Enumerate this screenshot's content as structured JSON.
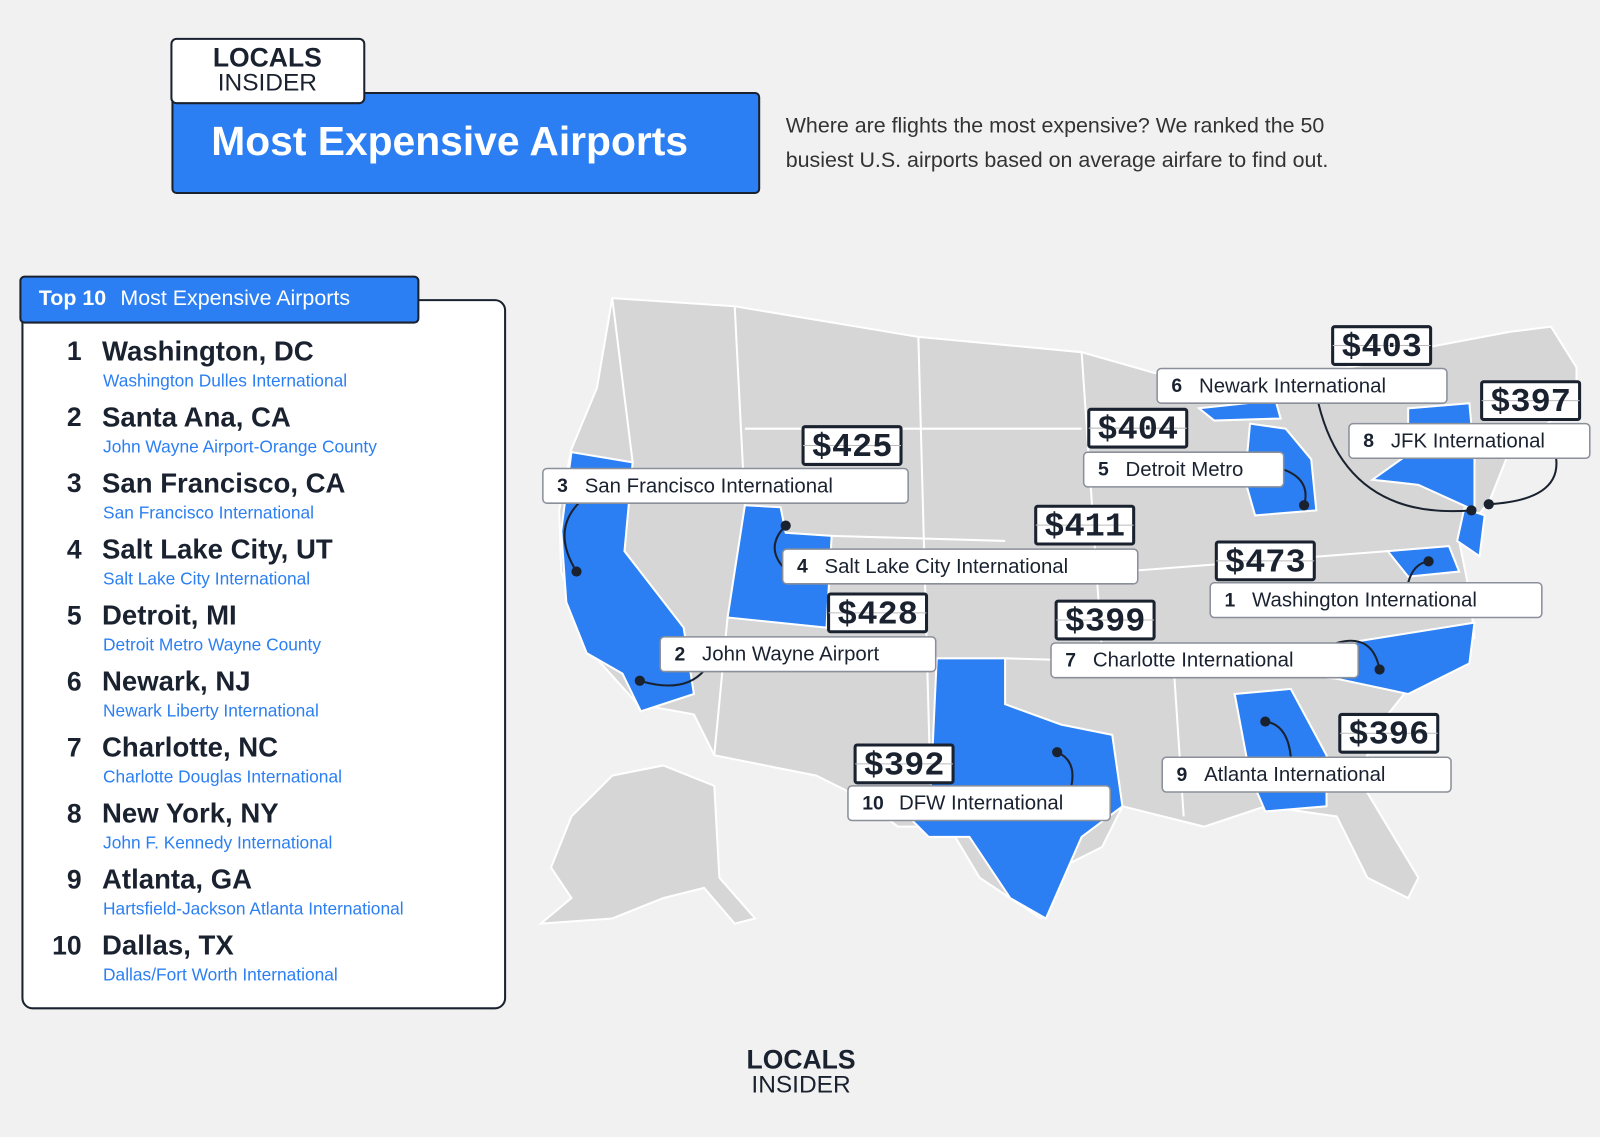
{
  "header": {
    "logo": [
      "LOCALS",
      "INSIDER"
    ],
    "title": "Most Expensive Airports",
    "description": [
      "Where are flights the most expensive? We ranked the 50",
      "busiest U.S. airports based on average airfare to find out."
    ]
  },
  "list": {
    "title_bold": "Top 10",
    "title": "Most Expensive Airports",
    "items": [
      {
        "rank": 1,
        "city": "Washington, DC",
        "airport": "Washington Dulles International"
      },
      {
        "rank": 2,
        "city": "Santa Ana, CA",
        "airport": "John Wayne Airport-Orange County"
      },
      {
        "rank": 3,
        "city": "San Francisco, CA",
        "airport": "San Francisco International"
      },
      {
        "rank": 4,
        "city": "Salt Lake City, UT",
        "airport": "Salt Lake City International"
      },
      {
        "rank": 5,
        "city": "Detroit, MI",
        "airport": "Detroit Metro Wayne County"
      },
      {
        "rank": 6,
        "city": "Newark, NJ",
        "airport": "Newark Liberty International"
      },
      {
        "rank": 7,
        "city": "Charlotte, NC",
        "airport": "Charlotte Douglas International"
      },
      {
        "rank": 8,
        "city": "New York, NY",
        "airport": "John F. Kennedy International"
      },
      {
        "rank": 9,
        "city": "Atlanta, GA",
        "airport": "Hartsfield-Jackson Atlanta International"
      },
      {
        "rank": 10,
        "city": "Dallas, TX",
        "airport": "Dallas/Fort Worth International"
      }
    ]
  },
  "map": {
    "callouts": [
      {
        "rank": 3,
        "name": "San Francisco International",
        "price": "$425"
      },
      {
        "rank": 4,
        "name": "Salt Lake City International",
        "price": "$411"
      },
      {
        "rank": 2,
        "name": "John Wayne Airport",
        "price": "$428"
      },
      {
        "rank": 10,
        "name": "DFW International",
        "price": "$392"
      },
      {
        "rank": 5,
        "name": "Detroit Metro",
        "price": "$404"
      },
      {
        "rank": 6,
        "name": "Newark International",
        "price": "$403"
      },
      {
        "rank": 8,
        "name": "JFK International",
        "price": "$397"
      },
      {
        "rank": 1,
        "name": "Washington International",
        "price": "$473"
      },
      {
        "rank": 7,
        "name": "Charlotte International",
        "price": "$399"
      },
      {
        "rank": 9,
        "name": "Atlanta International",
        "price": "$396"
      }
    ]
  },
  "footer": {
    "logo": [
      "LOCALS",
      "INSIDER"
    ]
  }
}
